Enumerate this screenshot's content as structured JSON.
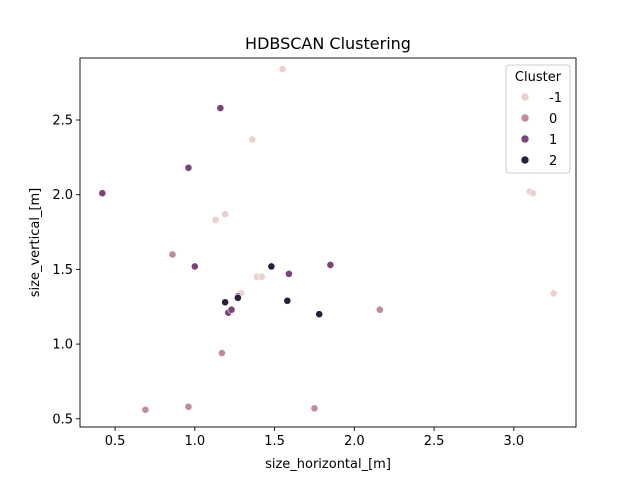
{
  "chart_data": {
    "type": "scatter",
    "title": "HDBSCAN Clustering",
    "xlabel": "size_horizontal_[m]",
    "ylabel": "size_vertical_[m]",
    "xlim": [
      0.28,
      3.39
    ],
    "ylim": [
      0.445,
      2.915
    ],
    "xticks": [
      0.5,
      1.0,
      1.5,
      2.0,
      2.5,
      3.0
    ],
    "xtick_labels": [
      "0.5",
      "1.0",
      "1.5",
      "2.0",
      "2.5",
      "3.0"
    ],
    "yticks": [
      0.5,
      1.0,
      1.5,
      2.0,
      2.5
    ],
    "ytick_labels": [
      "0.5",
      "1.0",
      "1.5",
      "2.0",
      "2.5"
    ],
    "grid": false,
    "legend": {
      "title": "Cluster",
      "placement": "top-right",
      "entries": [
        {
          "label": "-1",
          "color": "#ebd0d0"
        },
        {
          "label": "0",
          "color": "#c08aa0"
        },
        {
          "label": "1",
          "color": "#7b4478"
        },
        {
          "label": "2",
          "color": "#2c1d3a"
        }
      ]
    },
    "series": [
      {
        "name": "-1",
        "color": "#ebd0d0",
        "points": [
          {
            "x": 1.55,
            "y": 2.84
          },
          {
            "x": 1.36,
            "y": 2.37
          },
          {
            "x": 1.19,
            "y": 1.87
          },
          {
            "x": 1.13,
            "y": 1.83
          },
          {
            "x": 1.39,
            "y": 1.45
          },
          {
            "x": 1.42,
            "y": 1.45
          },
          {
            "x": 1.29,
            "y": 1.34
          },
          {
            "x": 3.1,
            "y": 2.02
          },
          {
            "x": 3.12,
            "y": 2.01
          },
          {
            "x": 3.25,
            "y": 1.34
          }
        ]
      },
      {
        "name": "0",
        "color": "#c08aa0",
        "points": [
          {
            "x": 0.86,
            "y": 1.6
          },
          {
            "x": 1.17,
            "y": 0.94
          },
          {
            "x": 0.96,
            "y": 0.58
          },
          {
            "x": 0.69,
            "y": 0.56
          },
          {
            "x": 1.75,
            "y": 0.57
          },
          {
            "x": 2.16,
            "y": 1.23
          }
        ]
      },
      {
        "name": "1",
        "color": "#7b4478",
        "points": [
          {
            "x": 1.16,
            "y": 2.58
          },
          {
            "x": 0.96,
            "y": 2.18
          },
          {
            "x": 0.42,
            "y": 2.01
          },
          {
            "x": 1.0,
            "y": 1.52
          },
          {
            "x": 1.59,
            "y": 1.47
          },
          {
            "x": 1.85,
            "y": 1.53
          },
          {
            "x": 1.21,
            "y": 1.21
          },
          {
            "x": 1.23,
            "y": 1.23
          },
          {
            "x": 1.27,
            "y": 1.32
          }
        ]
      },
      {
        "name": "2",
        "color": "#2c1d3a",
        "points": [
          {
            "x": 1.48,
            "y": 1.52
          },
          {
            "x": 1.58,
            "y": 1.29
          },
          {
            "x": 1.19,
            "y": 1.28
          },
          {
            "x": 1.27,
            "y": 1.31
          },
          {
            "x": 1.78,
            "y": 1.2
          }
        ]
      }
    ]
  }
}
